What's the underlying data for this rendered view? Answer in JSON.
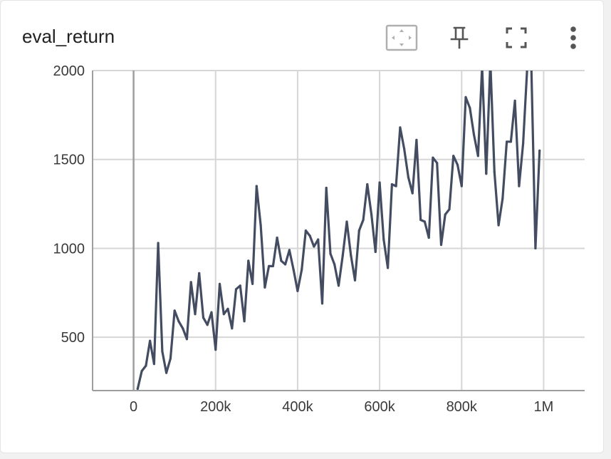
{
  "card": {
    "title": "eval_return"
  },
  "toolbar": {
    "buttons": [
      {
        "name": "fit-domain-button",
        "icon": "fit-to-data-icon"
      },
      {
        "name": "pin-button",
        "icon": "pin-icon"
      },
      {
        "name": "fullscreen-button",
        "icon": "fullscreen-icon"
      },
      {
        "name": "more-options-button",
        "icon": "more-vert-icon"
      }
    ]
  },
  "colors": {
    "line": "#434c61",
    "grid": "#d6d6d6",
    "axis": "#9e9e9e"
  },
  "chart_data": {
    "type": "line",
    "title": "eval_return",
    "xlabel": "",
    "ylabel": "",
    "xlim": [
      -100000,
      1100000
    ],
    "ylim": [
      200,
      2000
    ],
    "xticks": [
      0,
      200000,
      400000,
      600000,
      800000,
      1000000
    ],
    "xtick_labels": [
      "0",
      "200k",
      "400k",
      "600k",
      "800k",
      "1M"
    ],
    "yticks": [
      500,
      1000,
      1500,
      2000
    ],
    "ytick_labels": [
      "500",
      "1000",
      "1500",
      "2000"
    ],
    "grid": true,
    "legend": "none",
    "series": [
      {
        "x": [
          10000,
          20000,
          30000,
          40000,
          50000,
          60000,
          70000,
          80000,
          90000,
          100000,
          110000,
          120000,
          130000,
          140000,
          150000,
          160000,
          170000,
          180000,
          190000,
          200000,
          210000,
          220000,
          230000,
          240000,
          250000,
          260000,
          270000,
          280000,
          290000,
          300000,
          310000,
          320000,
          330000,
          340000,
          350000,
          360000,
          370000,
          380000,
          390000,
          400000,
          410000,
          420000,
          430000,
          440000,
          450000,
          460000,
          470000,
          480000,
          490000,
          500000,
          510000,
          520000,
          530000,
          540000,
          550000,
          560000,
          570000,
          580000,
          590000,
          600000,
          610000,
          620000,
          630000,
          640000,
          650000,
          660000,
          670000,
          680000,
          690000,
          700000,
          710000,
          720000,
          730000,
          740000,
          750000,
          760000,
          770000,
          780000,
          790000,
          800000,
          810000,
          820000,
          830000,
          840000,
          850000,
          860000,
          870000,
          880000,
          890000,
          900000,
          910000,
          920000,
          930000,
          940000,
          950000,
          960000,
          970000,
          980000,
          990000
        ],
        "values": [
          210,
          310,
          340,
          480,
          350,
          1030,
          420,
          300,
          380,
          650,
          590,
          550,
          490,
          810,
          630,
          860,
          610,
          570,
          640,
          430,
          800,
          630,
          660,
          550,
          770,
          790,
          590,
          930,
          800,
          1350,
          1130,
          780,
          900,
          900,
          1060,
          930,
          910,
          990,
          880,
          760,
          880,
          1100,
          1070,
          1010,
          1050,
          690,
          1340,
          970,
          910,
          790,
          960,
          1150,
          960,
          820,
          1100,
          1160,
          1360,
          1190,
          980,
          1370,
          1050,
          890,
          1360,
          1350,
          1680,
          1560,
          1400,
          1310,
          1610,
          1160,
          1150,
          1060,
          1510,
          1480,
          1020,
          1190,
          1220,
          1520,
          1470,
          1350,
          1850,
          1790,
          1640,
          1520,
          2020,
          1420,
          2050,
          1430,
          1130,
          1280,
          1600,
          1600,
          1830,
          1350,
          1590,
          2020,
          2030,
          1000,
          1550
        ]
      }
    ]
  }
}
